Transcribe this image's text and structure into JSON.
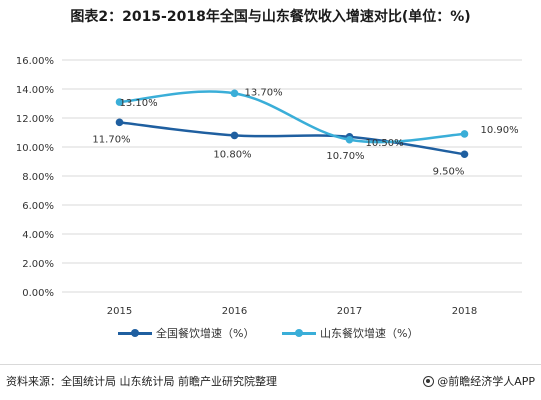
{
  "title": "图表2：2015-2018年全国与山东餐饮收入增速对比(单位：%)",
  "chart_data": {
    "type": "line",
    "title": "图表2：2015-2018年全国与山东餐饮收入增速对比(单位：%)",
    "xlabel": "",
    "ylabel": "",
    "categories": [
      "2015",
      "2016",
      "2017",
      "2018"
    ],
    "y_ticks": [
      "0.00%",
      "2.00%",
      "4.00%",
      "6.00%",
      "8.00%",
      "10.00%",
      "12.00%",
      "14.00%",
      "16.00%"
    ],
    "ylim": [
      0,
      16
    ],
    "grid": true,
    "legend_position": "bottom",
    "series": [
      {
        "name": "全国餐饮增速（%）",
        "values": [
          11.7,
          10.8,
          10.7,
          9.5
        ],
        "labels": [
          "11.70%",
          "10.80%",
          "10.70%",
          "9.50%"
        ],
        "color": "#1f5fa0"
      },
      {
        "name": "山东餐饮增速（%）",
        "values": [
          13.1,
          13.7,
          10.5,
          10.9
        ],
        "labels": [
          "13.10%",
          "13.70%",
          "10.50%",
          "10.90%"
        ],
        "color": "#3aaed8"
      }
    ]
  },
  "footer": {
    "source": "资料来源：全国统计局 山东统计局 前瞻产业研究院整理",
    "brand": "@前瞻经济学人APP"
  }
}
